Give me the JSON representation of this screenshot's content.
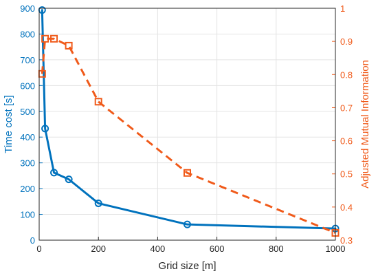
{
  "chart_data": {
    "type": "line",
    "xlabel": "Grid size [m]",
    "ylabel_left": "Time cost [s]",
    "ylabel_right": "Adjusted Mutual Information",
    "xlim": [
      0,
      1000
    ],
    "ylim_left": [
      0,
      900
    ],
    "ylim_right": [
      0.3,
      1.0
    ],
    "grid": true,
    "x_ticks": [
      0,
      200,
      400,
      600,
      800,
      1000
    ],
    "y_left_ticks": [
      0,
      100,
      200,
      300,
      400,
      500,
      600,
      700,
      800,
      900
    ],
    "y_right_ticks": [
      "0.3",
      "0.4",
      "0.5",
      "0.6",
      "0.7",
      "0.8",
      "0.9",
      "1"
    ],
    "series": [
      {
        "axis": "left",
        "color": "#0072BD",
        "line_style": "solid",
        "marker": "circle",
        "x": [
          10,
          20,
          50,
          100,
          200,
          500,
          1000
        ],
        "values": [
          893,
          433,
          262,
          236,
          143,
          61,
          45
        ]
      },
      {
        "axis": "right",
        "color": "#F05A1A",
        "line_style": "dashed",
        "marker": "square",
        "x": [
          10,
          20,
          50,
          100,
          200,
          500,
          1000
        ],
        "values": [
          0.802,
          0.908,
          0.908,
          0.887,
          0.718,
          0.503,
          0.322
        ]
      }
    ]
  }
}
